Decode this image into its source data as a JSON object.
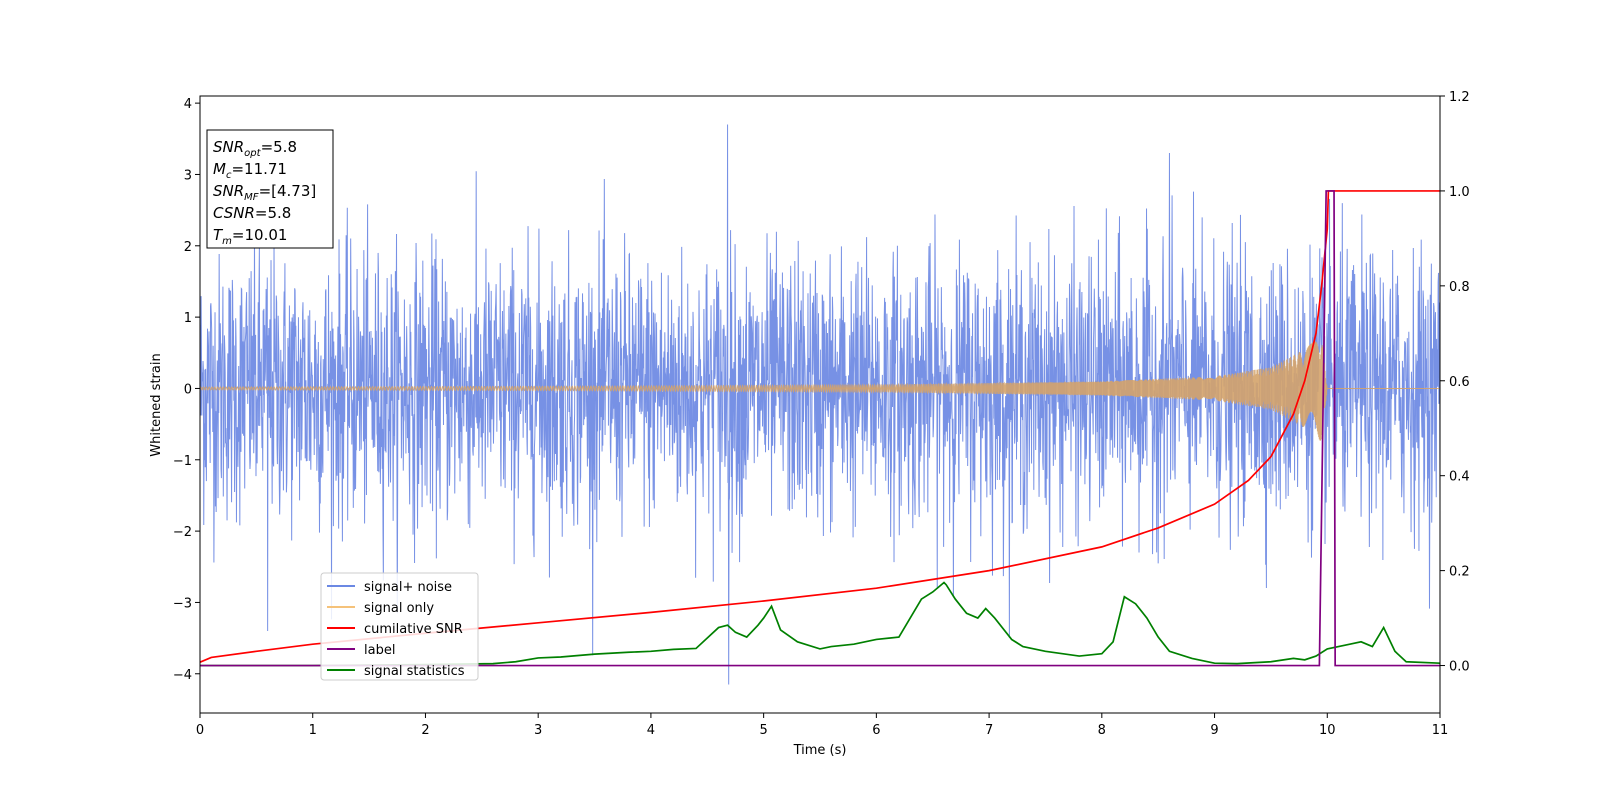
{
  "chart_data": {
    "type": "line",
    "xlabel": "Time (s)",
    "ylabel": "Whitened strain",
    "xlim": [
      0,
      11
    ],
    "ylim_left": [
      -4.55,
      4.1
    ],
    "ylim_right": [
      -0.1,
      1.2
    ],
    "x_ticks": [
      "0",
      "1",
      "2",
      "3",
      "4",
      "5",
      "6",
      "7",
      "8",
      "9",
      "10",
      "11"
    ],
    "y_left_ticks": [
      "4",
      "3",
      "2",
      "1",
      "0",
      "−1",
      "−2",
      "−3",
      "−4"
    ],
    "y_right_ticks": [
      "1.2",
      "1.0",
      "0.8",
      "0.6",
      "0.4",
      "0.2",
      "0.0"
    ],
    "legend_position": "lower-left",
    "info_box": [
      {
        "main": "SNR",
        "sub": "opt",
        "rest": "=5.8"
      },
      {
        "main": "M",
        "sub": "c",
        "rest": "=11.71"
      },
      {
        "main": "SNR",
        "sub": "MF",
        "rest": "=[4.73]"
      },
      {
        "main": "CSNR",
        "sub": "",
        "rest": "=5.8"
      },
      {
        "main": "T",
        "sub": "m",
        "rest": "=10.01"
      }
    ],
    "series": [
      {
        "name": "signal+ noise",
        "axis": "left",
        "color": "#6b88e3",
        "approx_envelope": {
          "typical_amplitude": 1.5,
          "max": 3.7,
          "min": -4.15
        },
        "notable_peaks": [
          [
            4.68,
            3.7
          ],
          [
            4.69,
            -4.15
          ],
          [
            8.6,
            3.3
          ],
          [
            0.6,
            -3.4
          ]
        ]
      },
      {
        "name": "signal only",
        "axis": "left",
        "color": "#f5b350",
        "amplitude_points": [
          [
            0,
            0.02
          ],
          [
            3,
            0.03
          ],
          [
            6,
            0.05
          ],
          [
            8,
            0.1
          ],
          [
            9,
            0.17
          ],
          [
            9.5,
            0.3
          ],
          [
            9.8,
            0.55
          ],
          [
            9.95,
            0.75
          ],
          [
            10.0,
            0.0
          ],
          [
            11,
            0.0
          ]
        ]
      },
      {
        "name": "cumilative SNR",
        "axis": "right",
        "color": "#ff0000",
        "x": [
          0,
          0.1,
          0.5,
          1,
          2,
          3,
          4,
          5,
          6,
          7,
          8,
          8.5,
          9,
          9.3,
          9.5,
          9.7,
          9.8,
          9.9,
          9.95,
          10.0,
          10.01,
          11
        ],
        "y": [
          0.007,
          0.017,
          0.03,
          0.045,
          0.068,
          0.09,
          0.112,
          0.136,
          0.163,
          0.2,
          0.25,
          0.29,
          0.34,
          0.39,
          0.44,
          0.53,
          0.6,
          0.7,
          0.8,
          0.92,
          1.0,
          1.0
        ]
      },
      {
        "name": "label",
        "axis": "right",
        "color": "#800080",
        "x": [
          0,
          9.93,
          9.99,
          10.06,
          10.07,
          11
        ],
        "y": [
          0.0,
          0.0,
          1.0,
          1.0,
          0.0,
          0.0
        ]
      },
      {
        "name": "signal statistics",
        "axis": "right",
        "color": "#008000",
        "x": [
          0,
          1,
          2,
          2.6,
          2.8,
          3.0,
          3.2,
          3.5,
          3.8,
          4.0,
          4.2,
          4.4,
          4.6,
          4.68,
          4.75,
          4.85,
          4.95,
          5.0,
          5.07,
          5.15,
          5.3,
          5.5,
          5.6,
          5.8,
          6.0,
          6.2,
          6.4,
          6.5,
          6.6,
          6.62,
          6.7,
          6.8,
          6.9,
          6.97,
          7.05,
          7.2,
          7.3,
          7.5,
          7.8,
          8.0,
          8.1,
          8.2,
          8.3,
          8.4,
          8.5,
          8.6,
          8.8,
          9.0,
          9.2,
          9.5,
          9.7,
          9.8,
          9.9,
          10.0,
          10.2,
          10.3,
          10.4,
          10.5,
          10.6,
          10.7,
          11
        ],
        "y": [
          0.0,
          0.0,
          0.002,
          0.004,
          0.008,
          0.016,
          0.018,
          0.024,
          0.028,
          0.03,
          0.034,
          0.036,
          0.08,
          0.085,
          0.07,
          0.06,
          0.085,
          0.1,
          0.125,
          0.075,
          0.05,
          0.035,
          0.04,
          0.045,
          0.055,
          0.06,
          0.14,
          0.155,
          0.175,
          0.17,
          0.14,
          0.11,
          0.1,
          0.12,
          0.1,
          0.055,
          0.04,
          0.03,
          0.02,
          0.025,
          0.05,
          0.145,
          0.13,
          0.1,
          0.06,
          0.03,
          0.015,
          0.005,
          0.004,
          0.008,
          0.015,
          0.012,
          0.02,
          0.035,
          0.045,
          0.05,
          0.04,
          0.08,
          0.03,
          0.008,
          0.005
        ]
      }
    ]
  }
}
